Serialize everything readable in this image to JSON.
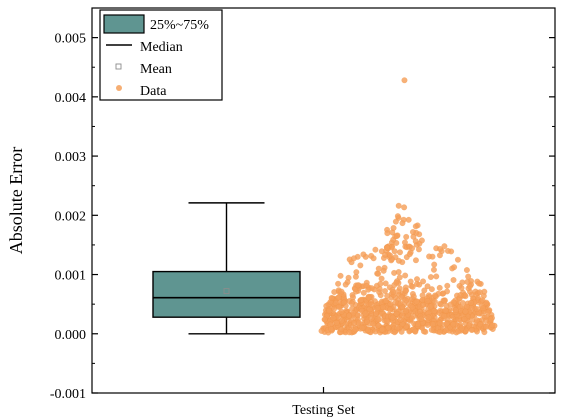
{
  "chart_data": {
    "type": "box",
    "category": "Testing Set",
    "ylabel": "Absolute Error",
    "xlabel": "",
    "ylim": [
      -0.001,
      0.0055
    ],
    "yticks": [
      "-0.001",
      "0.000",
      "0.001",
      "0.002",
      "0.003",
      "0.004",
      "0.005"
    ],
    "box": {
      "whisker_low": 0.0,
      "q1": 0.00028,
      "median": 0.00061,
      "mean": 0.00072,
      "q3": 0.00105,
      "whisker_high": 0.00221,
      "color": "#5f9591"
    },
    "scatter": {
      "color": "#f5a05a",
      "count": 900,
      "max": 0.00428
    },
    "legend": {
      "position": "top-left",
      "items": [
        "25%~75%",
        "Median",
        "Mean",
        "Data"
      ]
    }
  }
}
